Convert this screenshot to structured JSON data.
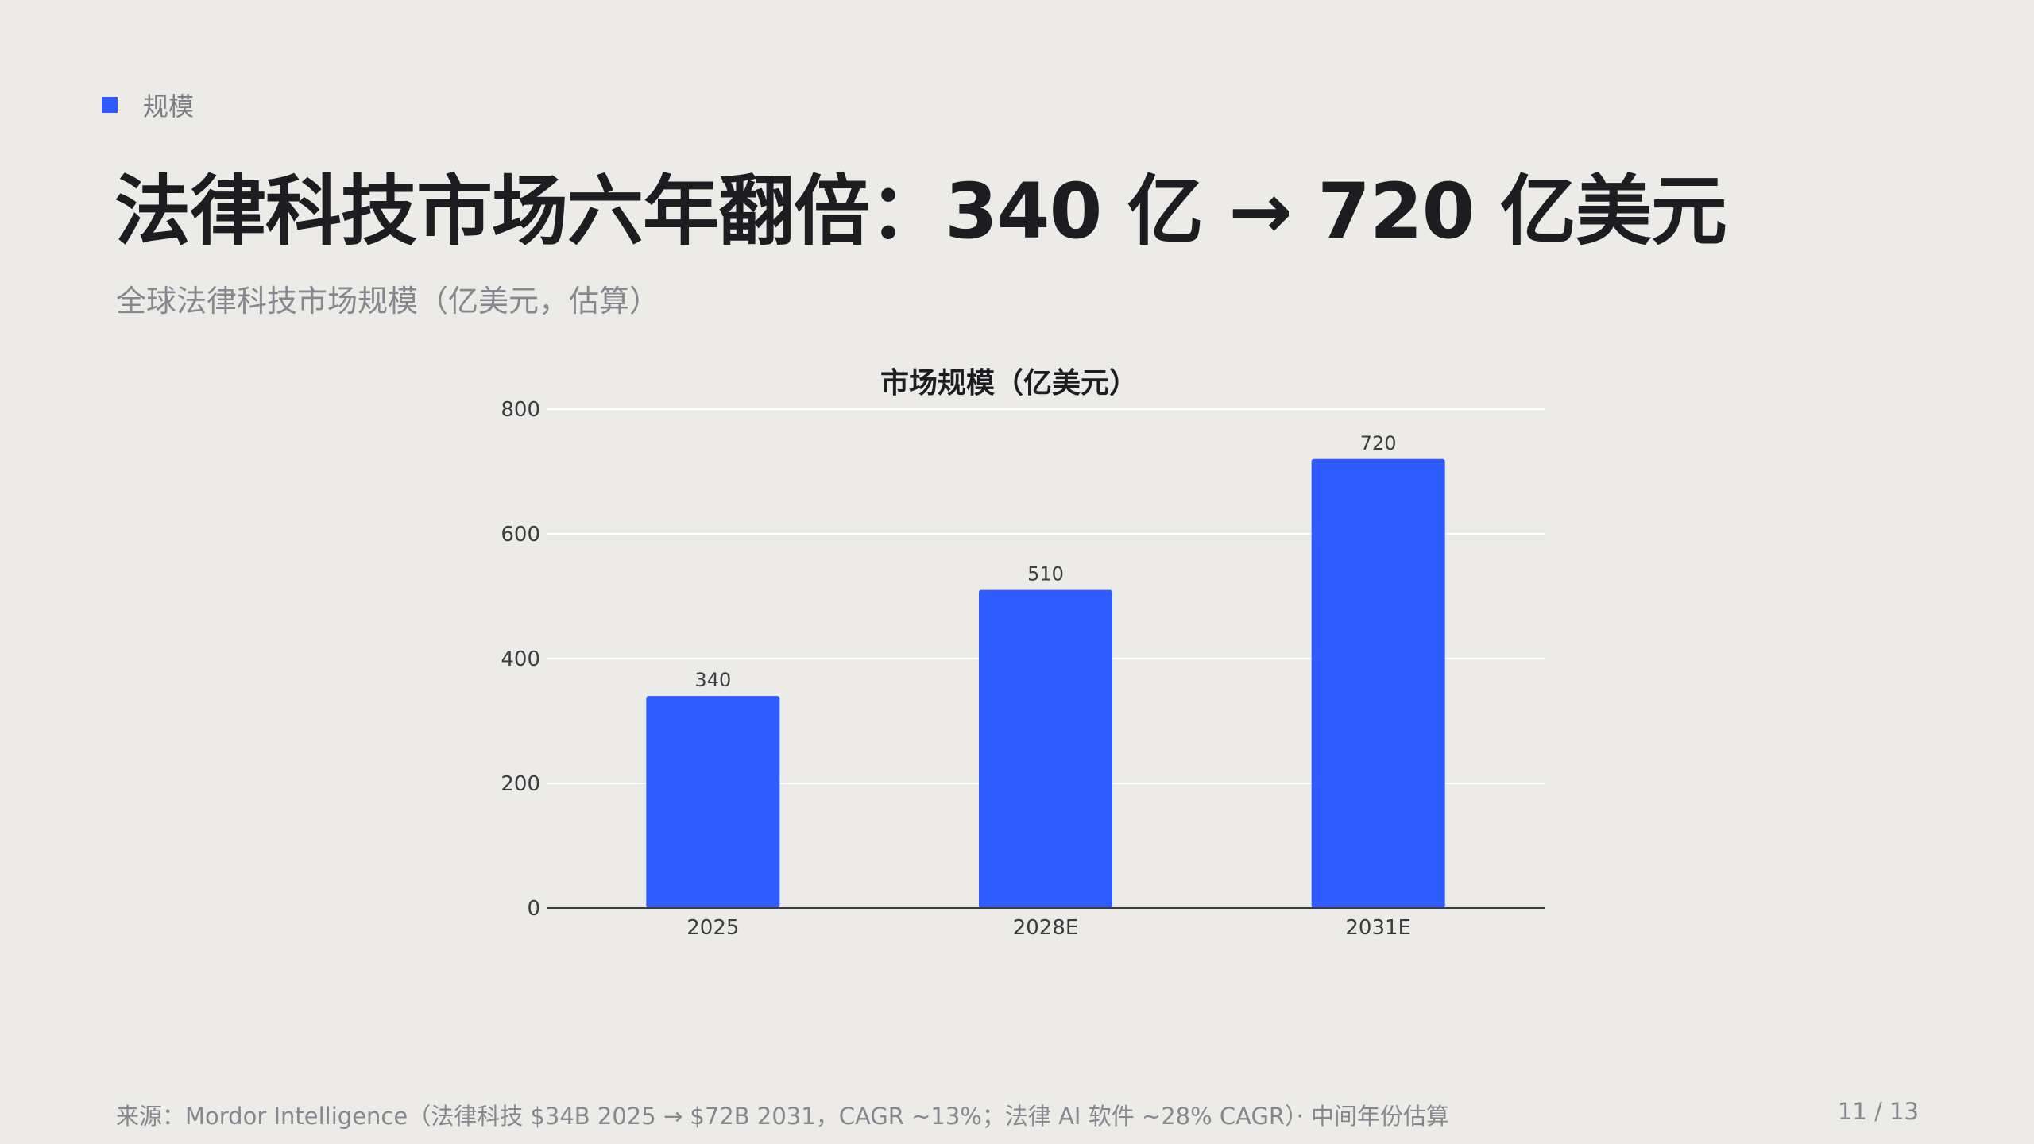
{
  "section": {
    "label": "规模",
    "accent_color": "#2f5bff"
  },
  "title": "法律科技市场六年翻倍：340 亿 → 720 亿美元",
  "subtitle": "全球法律科技市场规模（亿美元，估算）",
  "chart_data": {
    "type": "bar",
    "title": "市场规模（亿美元）",
    "categories": [
      "2025",
      "2028E",
      "2031E"
    ],
    "values": [
      340,
      510,
      720
    ],
    "data_labels": [
      "340",
      "510",
      "720"
    ],
    "ylim": [
      0,
      800
    ],
    "yticks": [
      0,
      200,
      400,
      600,
      800
    ],
    "ytick_labels": [
      "0",
      "200",
      "400",
      "600",
      "800"
    ],
    "xlabel": "",
    "ylabel": "",
    "grid": true,
    "legend": false,
    "bar_color": "#2f5bff"
  },
  "footer": {
    "source": "来源：Mordor Intelligence（法律科技 $34B 2025 → $72B 2031，CAGR ~13%；法律 AI 软件 ~28% CAGR）· 中间年份估算",
    "page": "11 / 13"
  }
}
